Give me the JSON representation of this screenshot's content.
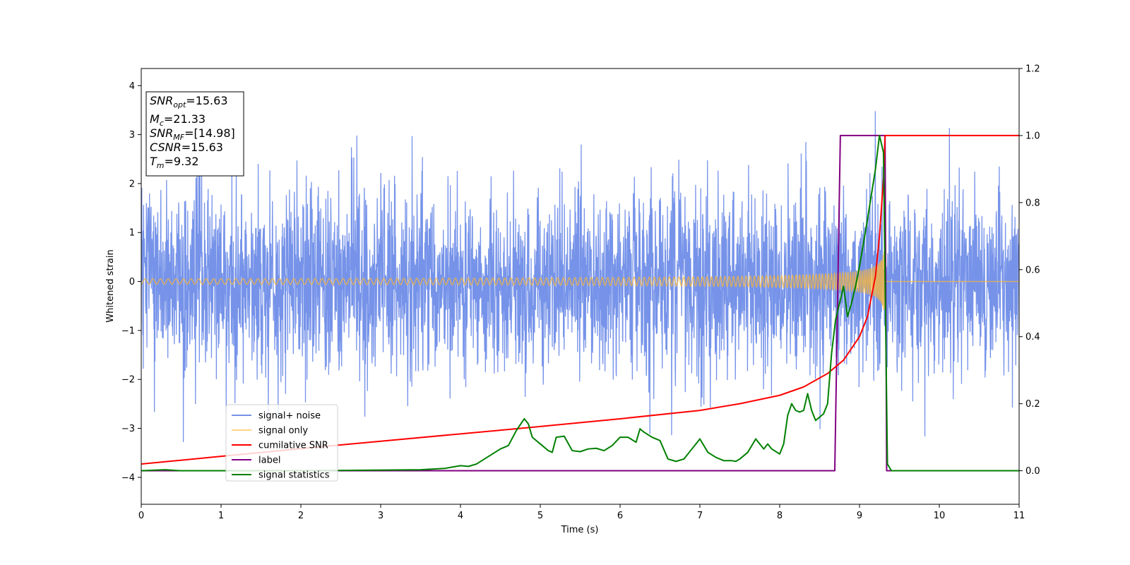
{
  "chart_data": {
    "type": "line",
    "xlabel": "Time (s)",
    "ylabel": "Whitened strain",
    "xlim": [
      0,
      11
    ],
    "ylim": [
      -4.55,
      4.35
    ],
    "ylim_right": [
      -0.1,
      1.2
    ],
    "x_ticks": [
      0,
      1,
      2,
      3,
      4,
      5,
      6,
      7,
      8,
      9,
      10,
      11
    ],
    "y_ticks": [
      -4,
      -3,
      -2,
      -1,
      0,
      1,
      2,
      3,
      4
    ],
    "y_ticks_right": [
      0.0,
      0.2,
      0.4,
      0.6,
      0.8,
      1.0,
      1.2
    ],
    "grid": false,
    "legend_position": "lower-left",
    "annotation": {
      "lines": [
        {
          "base": "SNR",
          "sub": "opt",
          "value": "=15.63"
        },
        {
          "base": "M",
          "sub": "c",
          "value": "=21.33"
        },
        {
          "base": "SNR",
          "sub": "MF",
          "value": "=[14.98]"
        },
        {
          "base": "CSNR",
          "sub": "",
          "value": "=15.63"
        },
        {
          "base": "T",
          "sub": "m",
          "value": "=9.32"
        }
      ]
    },
    "series": [
      {
        "name": "signal+ noise",
        "axis": "left",
        "color": "#4169e1",
        "description_range": [
          -4.15,
          3.95
        ]
      },
      {
        "name": "signal only",
        "axis": "left",
        "color": "#ffb732",
        "merger_time": 9.32
      },
      {
        "name": "cumilative SNR",
        "axis": "right",
        "color": "#ff0000",
        "x": [
          0,
          1,
          2,
          3,
          4,
          5,
          6,
          7,
          7.5,
          8,
          8.3,
          8.6,
          8.8,
          9.0,
          9.1,
          9.2,
          9.25,
          9.3,
          9.32,
          11
        ],
        "y": [
          0.02,
          0.043,
          0.066,
          0.088,
          0.11,
          0.132,
          0.155,
          0.18,
          0.2,
          0.225,
          0.25,
          0.29,
          0.33,
          0.4,
          0.46,
          0.58,
          0.7,
          0.87,
          1.0,
          1.0
        ]
      },
      {
        "name": "label",
        "axis": "right",
        "color": "#800080",
        "x": [
          0,
          8.69,
          8.76,
          9.32,
          9.34,
          11
        ],
        "y": [
          0,
          0,
          1,
          1,
          0,
          0
        ]
      },
      {
        "name": "signal statistics",
        "axis": "right",
        "color": "#008000",
        "x": [
          0,
          0.3,
          0.5,
          1.0,
          2.0,
          3.0,
          3.5,
          3.8,
          4.0,
          4.1,
          4.2,
          4.3,
          4.4,
          4.5,
          4.6,
          4.7,
          4.8,
          4.85,
          4.9,
          5.0,
          5.1,
          5.15,
          5.2,
          5.3,
          5.4,
          5.5,
          5.6,
          5.7,
          5.8,
          5.9,
          6.0,
          6.1,
          6.2,
          6.25,
          6.3,
          6.4,
          6.5,
          6.6,
          6.7,
          6.8,
          6.9,
          7.0,
          7.1,
          7.2,
          7.3,
          7.4,
          7.45,
          7.5,
          7.6,
          7.7,
          7.8,
          7.85,
          7.9,
          8.0,
          8.05,
          8.1,
          8.15,
          8.2,
          8.25,
          8.3,
          8.35,
          8.4,
          8.45,
          8.5,
          8.55,
          8.6,
          8.65,
          8.7,
          8.75,
          8.8,
          8.85,
          8.9,
          8.95,
          9.0,
          9.1,
          9.2,
          9.25,
          9.3,
          9.35,
          9.4,
          11
        ],
        "y": [
          0.0,
          0.003,
          0.0,
          0.0,
          0.0,
          0.002,
          0.003,
          0.007,
          0.015,
          0.013,
          0.02,
          0.035,
          0.05,
          0.065,
          0.075,
          0.12,
          0.155,
          0.14,
          0.1,
          0.08,
          0.06,
          0.055,
          0.1,
          0.103,
          0.06,
          0.057,
          0.065,
          0.067,
          0.06,
          0.075,
          0.1,
          0.1,
          0.085,
          0.125,
          0.115,
          0.1,
          0.09,
          0.035,
          0.028,
          0.035,
          0.065,
          0.095,
          0.055,
          0.04,
          0.03,
          0.03,
          0.028,
          0.035,
          0.055,
          0.095,
          0.065,
          0.08,
          0.065,
          0.05,
          0.08,
          0.165,
          0.2,
          0.18,
          0.175,
          0.18,
          0.23,
          0.18,
          0.15,
          0.16,
          0.17,
          0.2,
          0.35,
          0.45,
          0.5,
          0.55,
          0.46,
          0.5,
          0.55,
          0.61,
          0.75,
          0.9,
          1.0,
          0.95,
          0.02,
          0.0,
          0.0
        ]
      }
    ]
  }
}
